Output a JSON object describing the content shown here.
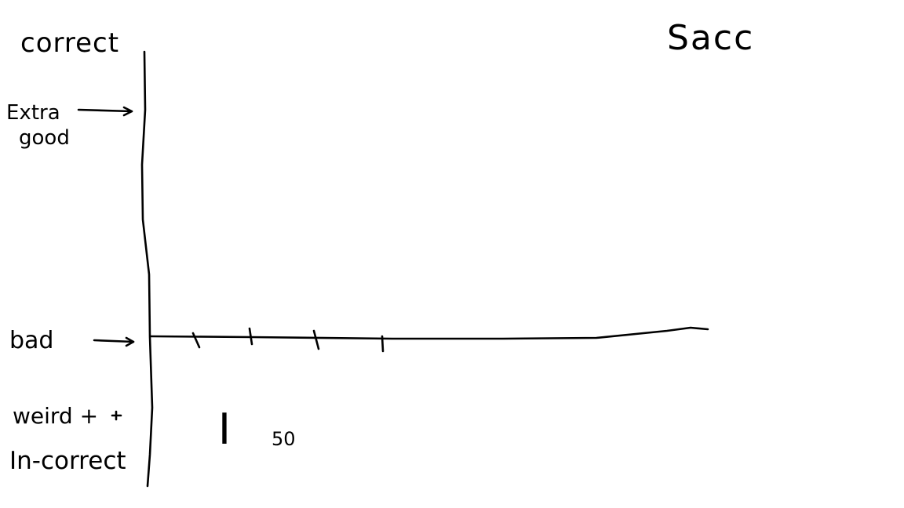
{
  "labels": {
    "top_axis_label": "correct",
    "top_right_label": "Sacc",
    "level_extra_good": "Extra",
    "level_extra_good_line2": "good",
    "level_bad": "bad",
    "level_weird": "weird +",
    "level_incorrect": "In-correct",
    "x_annotation": "I",
    "x_annotation_sub": "50"
  },
  "colors": {
    "ink": "#000000",
    "background": "#ffffff"
  }
}
